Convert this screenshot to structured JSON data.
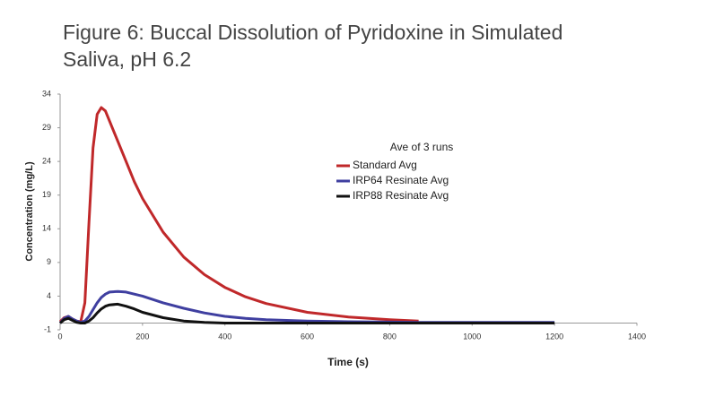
{
  "chart_data": {
    "type": "line",
    "title": "Figure 6: Buccal Dissolution of Pyridoxine in Simulated Saliva, pH 6.2",
    "x_label": "Time (s)",
    "y_label": "Concentration (mg/L)",
    "legend_title": "Ave of 3 runs",
    "x": [
      0,
      10,
      20,
      30,
      40,
      50,
      60,
      70,
      80,
      90,
      100,
      110,
      120,
      140,
      160,
      180,
      200,
      250,
      300,
      350,
      400,
      450,
      500,
      600,
      700,
      800,
      870,
      1000,
      1200
    ],
    "series": [
      {
        "name": "Standard Avg",
        "color": "#c0282a",
        "values": [
          0.2,
          0.8,
          1.0,
          0.6,
          0.3,
          0.2,
          3,
          15,
          26,
          31,
          32,
          31.5,
          30,
          27,
          24,
          21,
          18.5,
          13.5,
          9.8,
          7.2,
          5.3,
          3.9,
          2.9,
          1.6,
          0.9,
          0.5,
          0.3,
          null,
          null
        ]
      },
      {
        "name": "IRP64 Resinate Avg",
        "color": "#3f3fa0",
        "values": [
          0,
          0.7,
          1.0,
          0.6,
          0.3,
          0.1,
          0.3,
          1.0,
          2.0,
          3.0,
          3.8,
          4.3,
          4.6,
          4.7,
          4.6,
          4.3,
          4.0,
          3.0,
          2.2,
          1.5,
          1.0,
          0.7,
          0.5,
          0.3,
          0.2,
          0.15,
          0.1,
          0.1,
          0.1
        ]
      },
      {
        "name": "IRP88 Resinate Avg",
        "color": "#111111",
        "values": [
          0,
          0.5,
          0.7,
          0.4,
          0.1,
          0,
          0,
          0.3,
          0.8,
          1.5,
          2.1,
          2.5,
          2.7,
          2.8,
          2.5,
          2.1,
          1.6,
          0.8,
          0.3,
          0.1,
          0,
          0,
          0,
          0,
          0,
          0,
          0,
          0,
          0
        ]
      }
    ],
    "xlim": [
      0,
      1400
    ],
    "xticks": [
      0,
      200,
      400,
      600,
      800,
      1000,
      1200,
      1400
    ],
    "ylim": [
      -1,
      34
    ],
    "yticks": [
      -1,
      4,
      9,
      14,
      19,
      24,
      29,
      34
    ],
    "legend": "upper-center"
  }
}
